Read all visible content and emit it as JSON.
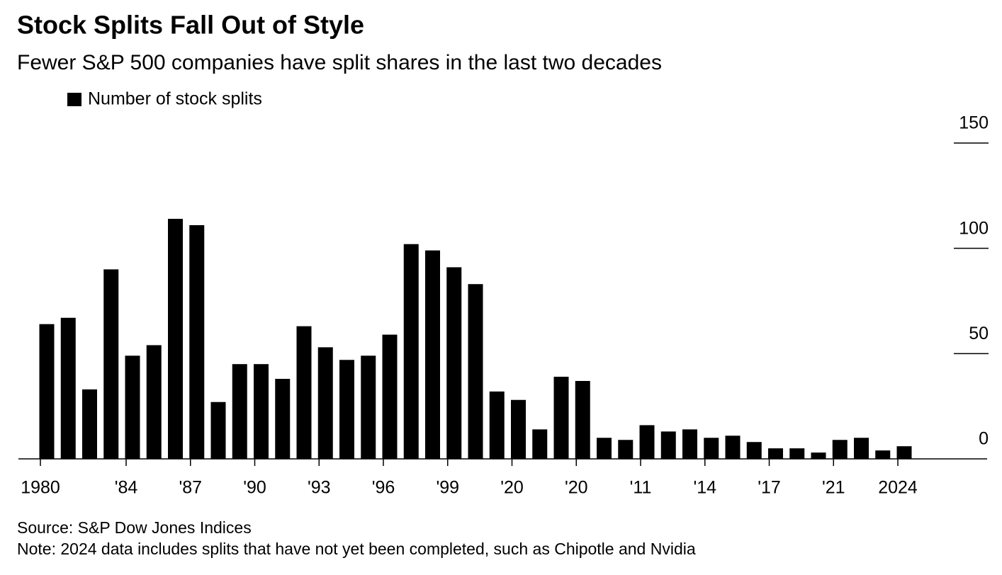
{
  "chart_data": {
    "type": "bar",
    "title": "Stock Splits Fall Out of Style",
    "subtitle": "Fewer S&P 500 companies have split shares in the last two decades",
    "categories": [
      "1980",
      null,
      null,
      null,
      "'84",
      null,
      null,
      "'87",
      null,
      null,
      "'90",
      null,
      null,
      "'93",
      null,
      null,
      "'96",
      null,
      null,
      "'99",
      null,
      null,
      "'20",
      null,
      null,
      "'20",
      null,
      null,
      "'11",
      null,
      null,
      "'14",
      null,
      null,
      "'17",
      null,
      null,
      "'21",
      null,
      null,
      "2024"
    ],
    "series": [
      {
        "name": "Number of stock splits",
        "color": "#000000",
        "values": [
          64,
          67,
          33,
          90,
          49,
          54,
          114,
          111,
          27,
          45,
          45,
          38,
          63,
          53,
          47,
          49,
          59,
          102,
          99,
          91,
          83,
          32,
          28,
          14,
          39,
          37,
          10,
          9,
          16,
          13,
          14,
          10,
          11,
          8,
          5,
          5,
          3,
          9,
          10,
          4,
          6
        ]
      }
    ],
    "ylim": [
      0,
      150
    ],
    "yticks": [
      0,
      50,
      100,
      150
    ],
    "grid": true,
    "legend": "top-left",
    "source": "Source: S&P Dow Jones Indices",
    "note": "Note: 2024 data includes splits that have not yet been completed, such as Chipotle and Nvidia"
  }
}
